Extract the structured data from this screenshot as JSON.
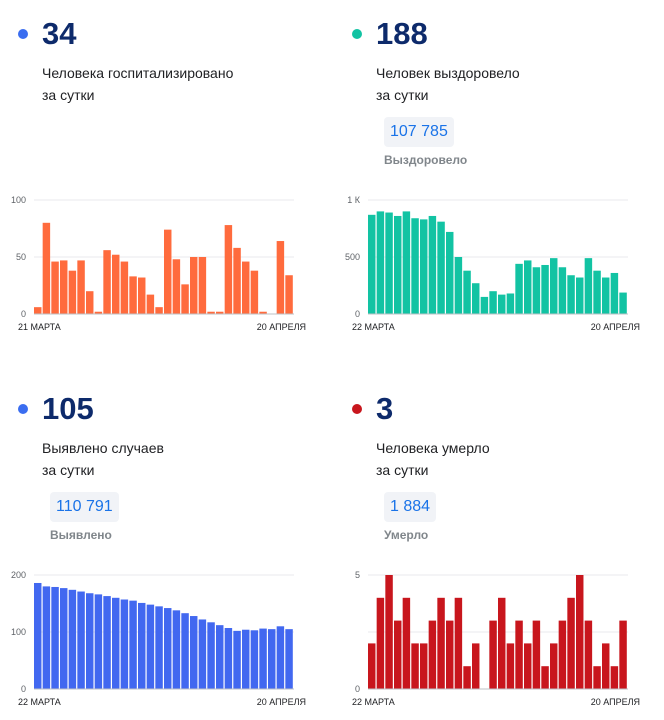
{
  "panels": [
    {
      "value": "34",
      "desc1": "Человека госпитализировано",
      "desc2": "за сутки",
      "color": "#ff6b3d",
      "chart_data": {
        "type": "bar",
        "x_start": "21 МАРТА",
        "x_end": "20 АПРЕЛЯ",
        "yticks": [
          "100",
          "50",
          "0"
        ],
        "ylim": [
          0,
          100
        ],
        "values": [
          6,
          80,
          46,
          47,
          38,
          47,
          20,
          2,
          56,
          52,
          46,
          33,
          32,
          17,
          6,
          74,
          48,
          26,
          50,
          50,
          2,
          2,
          78,
          58,
          46,
          38,
          2,
          0,
          64,
          34
        ]
      }
    },
    {
      "value": "188",
      "desc1": "Человек выздоровело",
      "desc2": "за сутки",
      "total": "107 785",
      "total_label": "Выздоровело",
      "color": "#12c3a3",
      "chart_data": {
        "type": "bar",
        "x_start": "22 МАРТА",
        "x_end": "20 АПРЕЛЯ",
        "yticks": [
          "1 К",
          "500",
          "0"
        ],
        "ylim": [
          0,
          1000
        ],
        "values": [
          870,
          900,
          890,
          860,
          900,
          840,
          830,
          860,
          810,
          720,
          500,
          380,
          270,
          150,
          200,
          170,
          180,
          440,
          470,
          410,
          430,
          490,
          410,
          340,
          320,
          490,
          380,
          320,
          360,
          188
        ]
      }
    },
    {
      "value": "105",
      "desc1": "Выявлено случаев",
      "desc2": "за сутки",
      "total": "110 791",
      "total_label": "Выявлено",
      "color": "#4268f0",
      "chart_data": {
        "type": "bar",
        "x_start": "22 МАРТА",
        "x_end": "20 АПРЕЛЯ",
        "yticks": [
          "200",
          "100",
          "0"
        ],
        "ylim": [
          0,
          200
        ],
        "values": [
          186,
          180,
          179,
          177,
          174,
          171,
          168,
          166,
          163,
          160,
          157,
          155,
          151,
          148,
          145,
          142,
          138,
          133,
          128,
          122,
          117,
          112,
          107,
          102,
          104,
          103,
          106,
          105,
          110,
          105
        ]
      }
    },
    {
      "value": "3",
      "desc1": "Человека умерло",
      "desc2": "за сутки",
      "total": "1 884",
      "total_label": "Умерло",
      "color": "#c8161d",
      "chart_data": {
        "type": "bar",
        "x_start": "22 МАРТА",
        "x_end": "20 АПРЕЛЯ",
        "yticks": [
          "5",
          "",
          "0"
        ],
        "ylim": [
          0,
          5
        ],
        "values": [
          2,
          4,
          5,
          3,
          4,
          2,
          2,
          3,
          4,
          3,
          4,
          1,
          2,
          0,
          3,
          4,
          2,
          3,
          2,
          3,
          1,
          2,
          3,
          4,
          5,
          3,
          1,
          2,
          1,
          3
        ]
      }
    }
  ]
}
